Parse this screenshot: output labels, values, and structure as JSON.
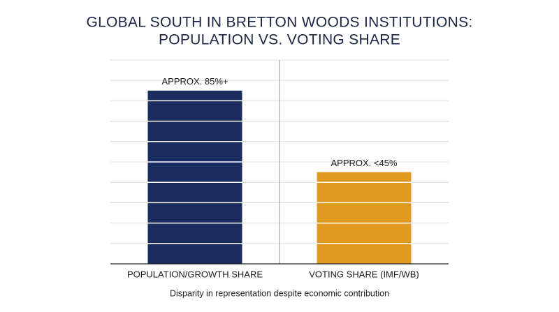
{
  "chart_data": {
    "type": "bar",
    "title": [
      "GLOBAL SOUTH IN BRETTON WOODS INSTITUTIONS:",
      "POPULATION VS. VOTING SHARE"
    ],
    "caption": "Disparity in representation despite economic contribution",
    "categories": [
      "POPULATION/GROWTH SHARE",
      "VOTING SHARE (IMF/WB)"
    ],
    "values": [
      85,
      45
    ],
    "value_labels": [
      "APPROX. 85%+",
      "APPROX. <45%"
    ],
    "colors": [
      "#1b2d5e",
      "#e09a1f"
    ],
    "ylim": [
      0,
      100
    ],
    "yticks": [
      0,
      10,
      20,
      30,
      40,
      50,
      60,
      70,
      80,
      90,
      100
    ],
    "grid": true
  }
}
